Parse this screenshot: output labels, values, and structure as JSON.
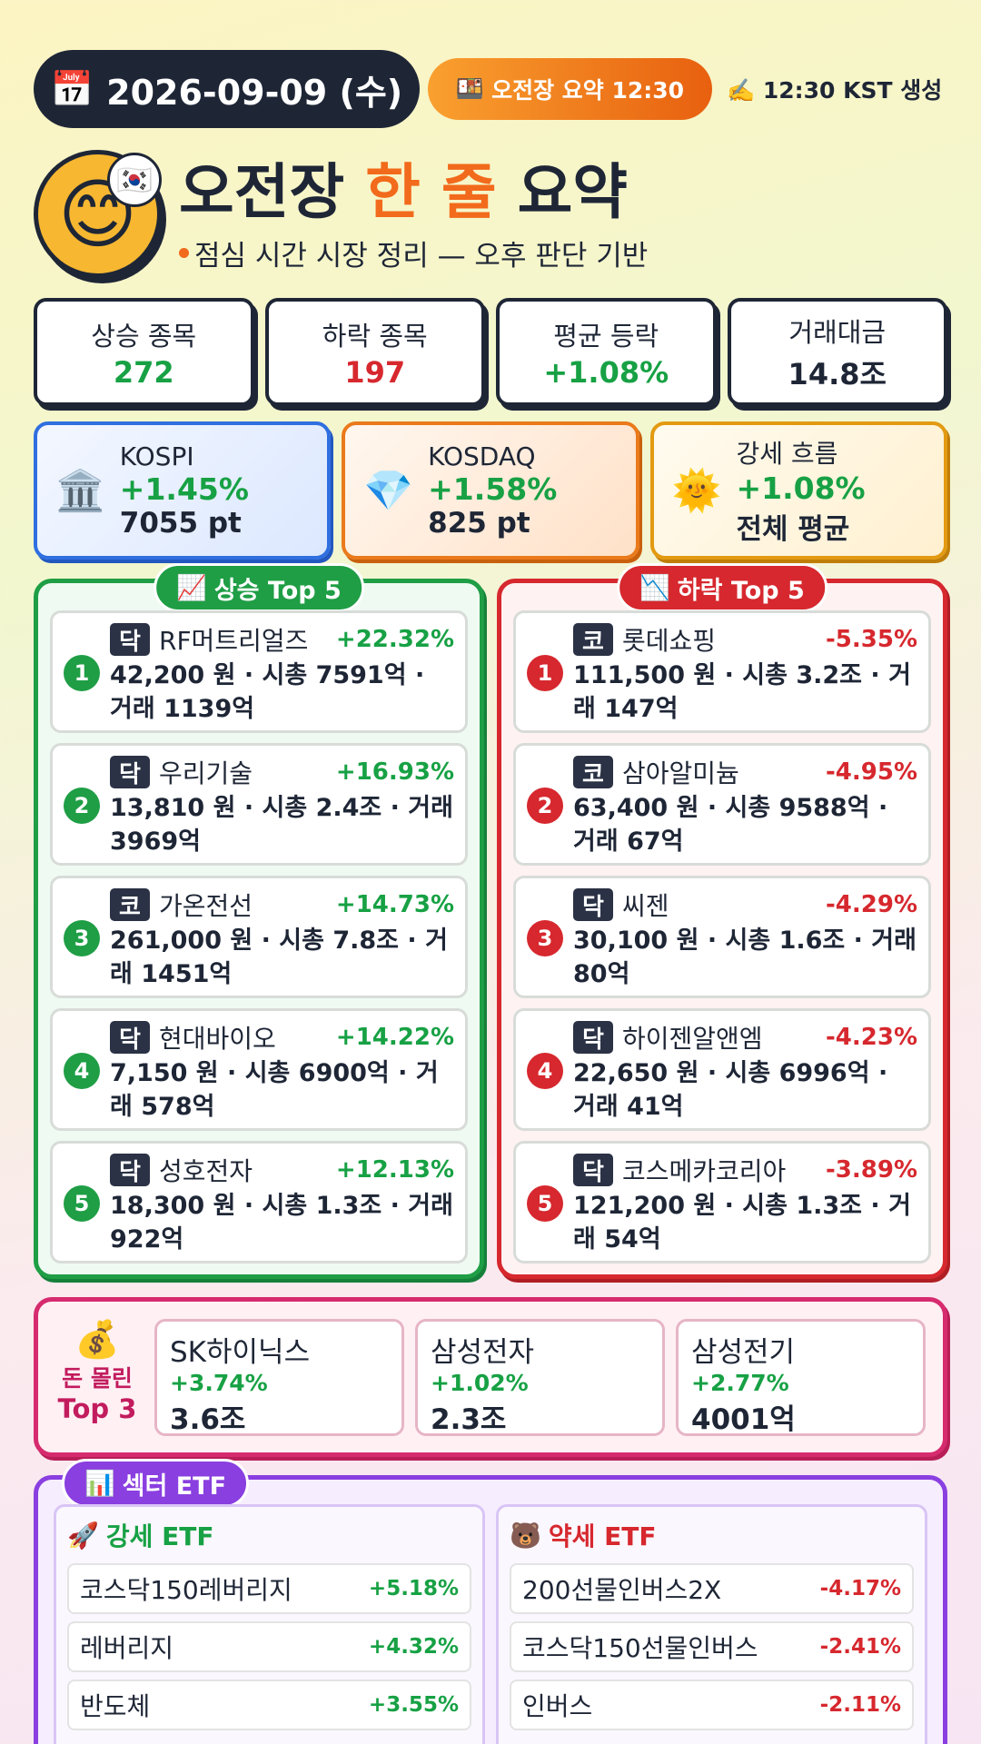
{
  "header": {
    "date": "2026-09-09 (수)",
    "session_badge": "오전장 요약 12:30",
    "generated": "12:30 KST 생성"
  },
  "title": {
    "pre": "오전장",
    "highlight": "한 줄",
    "post": "요약",
    "subtitle": "점심 시간 시장 정리 — 오후 판단 기반"
  },
  "stats": [
    {
      "label": "상승 종목",
      "value": "272"
    },
    {
      "label": "하락 종목",
      "value": "197"
    },
    {
      "label": "평균 등락",
      "value": "+1.08%"
    },
    {
      "label": "거래대금",
      "value": "14.8조"
    }
  ],
  "indices": [
    {
      "name": "KOSPI",
      "change": "+1.45%",
      "level": "7055 pt"
    },
    {
      "name": "KOSDAQ",
      "change": "+1.58%",
      "level": "825 pt"
    },
    {
      "name": "강세 흐름",
      "change": "+1.08%",
      "level": "전체 평균"
    }
  ],
  "gainers": {
    "title": "상승 Top 5",
    "items": [
      {
        "rank": "1",
        "market": "닥",
        "name": "RF머트리얼즈",
        "change": "+22.32%",
        "detail": "42,200 원 · 시총 7591억 · 거래 1139억"
      },
      {
        "rank": "2",
        "market": "닥",
        "name": "우리기술",
        "change": "+16.93%",
        "detail": "13,810 원 · 시총 2.4조 · 거래 3969억"
      },
      {
        "rank": "3",
        "market": "코",
        "name": "가온전선",
        "change": "+14.73%",
        "detail": "261,000 원 · 시총 7.8조 · 거래 1451억"
      },
      {
        "rank": "4",
        "market": "닥",
        "name": "현대바이오",
        "change": "+14.22%",
        "detail": "7,150 원 · 시총 6900억 · 거래 578억"
      },
      {
        "rank": "5",
        "market": "닥",
        "name": "성호전자",
        "change": "+12.13%",
        "detail": "18,300 원 · 시총 1.3조 · 거래 922억"
      }
    ]
  },
  "losers": {
    "title": "하락 Top 5",
    "items": [
      {
        "rank": "1",
        "market": "코",
        "name": "롯데쇼핑",
        "change": "-5.35%",
        "detail": "111,500 원 · 시총 3.2조 · 거래 147억"
      },
      {
        "rank": "2",
        "market": "코",
        "name": "삼아알미늄",
        "change": "-4.95%",
        "detail": "63,400 원 · 시총 9588억 · 거래 67억"
      },
      {
        "rank": "3",
        "market": "닥",
        "name": "씨젠",
        "change": "-4.29%",
        "detail": "30,100 원 · 시총 1.6조 · 거래 80억"
      },
      {
        "rank": "4",
        "market": "닥",
        "name": "하이젠알앤엠",
        "change": "-4.23%",
        "detail": "22,650 원 · 시총 6996억 · 거래 41억"
      },
      {
        "rank": "5",
        "market": "닥",
        "name": "코스메카코리아",
        "change": "-3.89%",
        "detail": "121,200 원 · 시총 1.3조 · 거래 54억"
      }
    ]
  },
  "money": {
    "title_line1": "돈 몰린",
    "title_line2": "Top 3",
    "items": [
      {
        "name": "SK하이닉스",
        "change": "+3.74%",
        "amount": "3.6조"
      },
      {
        "name": "삼성전자",
        "change": "+1.02%",
        "amount": "2.3조"
      },
      {
        "name": "삼성전기",
        "change": "+2.77%",
        "amount": "4001억"
      }
    ]
  },
  "etf": {
    "title": "섹터 ETF",
    "strong": {
      "title": "강세 ETF",
      "items": [
        {
          "name": "코스닥150레버리지",
          "change": "+5.18%"
        },
        {
          "name": "레버리지",
          "change": "+4.32%"
        },
        {
          "name": "반도체",
          "change": "+3.55%"
        }
      ]
    },
    "weak": {
      "title": "약세 ETF",
      "items": [
        {
          "name": "200선물인버스2X",
          "change": "-4.17%"
        },
        {
          "name": "코스닥150선물인버스",
          "change": "-2.41%"
        },
        {
          "name": "인버스",
          "change": "-2.11%"
        }
      ]
    }
  }
}
